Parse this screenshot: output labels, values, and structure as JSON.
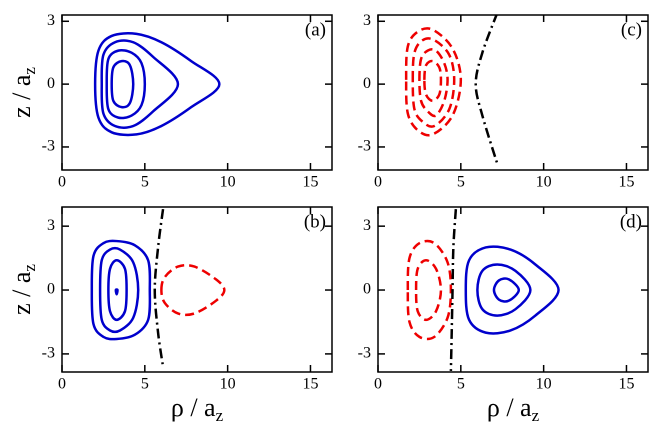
{
  "chart_data": [
    {
      "type": "contour",
      "panel_label": "(a)",
      "ylabel": {
        "text": "z / a",
        "sub": "z"
      },
      "xlim": [
        0,
        16.3
      ],
      "ylim": [
        -4.1,
        3.3
      ],
      "xticks": [
        0,
        5,
        10,
        15
      ],
      "yticks": [
        -3,
        0,
        3
      ],
      "series": [
        {
          "color": "#0000cc",
          "style": "solid",
          "closed": true,
          "x": [
            2.0,
            2.2,
            3.0,
            4.5,
            6.0,
            7.8,
            9.5,
            7.8,
            6.0,
            4.5,
            3.0,
            2.2
          ],
          "y": [
            0,
            1.6,
            2.3,
            2.4,
            2.0,
            1.1,
            0,
            -1.1,
            -2.0,
            -2.4,
            -2.3,
            -1.6
          ]
        },
        {
          "color": "#0000cc",
          "style": "solid",
          "closed": true,
          "x": [
            2.4,
            2.5,
            3.2,
            4.3,
            5.5,
            7.0,
            5.5,
            4.3,
            3.2,
            2.5
          ],
          "y": [
            0,
            1.4,
            2.0,
            2.0,
            1.3,
            0,
            -1.3,
            -2.0,
            -2.0,
            -1.4
          ]
        },
        {
          "color": "#0000cc",
          "style": "solid",
          "closed": true,
          "x": [
            2.7,
            2.8,
            3.4,
            4.2,
            4.8,
            5.0,
            4.8,
            4.2,
            3.4,
            2.8
          ],
          "y": [
            0,
            1.2,
            1.6,
            1.5,
            1.0,
            0,
            -1.0,
            -1.5,
            -1.6,
            -1.2
          ]
        },
        {
          "color": "#0000cc",
          "style": "solid",
          "closed": true,
          "x": [
            3.0,
            3.1,
            3.6,
            4.1,
            4.3,
            4.1,
            3.6,
            3.1
          ],
          "y": [
            0,
            0.8,
            1.1,
            0.9,
            0,
            -0.9,
            -1.1,
            -0.8
          ]
        }
      ]
    },
    {
      "type": "contour",
      "panel_label": "(b)",
      "ylabel": {
        "text": "z / a",
        "sub": "z"
      },
      "xlabel": {
        "text": "ρ / a",
        "sub": "z"
      },
      "xlim": [
        0,
        16.3
      ],
      "ylim": [
        -3.85,
        3.9
      ],
      "xticks": [
        0,
        5,
        10,
        15
      ],
      "yticks": [
        -3,
        0,
        3
      ],
      "series": [
        {
          "color": "#0000cc",
          "style": "solid",
          "closed": true,
          "x": [
            1.8,
            1.9,
            2.5,
            3.3,
            4.4,
            5.2,
            5.3,
            5.2,
            4.4,
            3.3,
            2.5,
            1.9
          ],
          "y": [
            0,
            1.6,
            2.2,
            2.3,
            2.1,
            1.4,
            0,
            -1.4,
            -2.1,
            -2.3,
            -2.2,
            -1.6
          ]
        },
        {
          "color": "#0000cc",
          "style": "solid",
          "closed": true,
          "x": [
            2.3,
            2.4,
            2.9,
            3.5,
            4.3,
            4.6,
            4.3,
            3.5,
            2.9,
            2.4
          ],
          "y": [
            0,
            1.4,
            1.9,
            1.9,
            1.3,
            0,
            -1.3,
            -1.9,
            -1.9,
            -1.4
          ]
        },
        {
          "color": "#0000cc",
          "style": "solid",
          "closed": true,
          "x": [
            2.8,
            2.9,
            3.3,
            3.8,
            3.9,
            3.8,
            3.3,
            2.9
          ],
          "y": [
            0,
            1.0,
            1.4,
            1.0,
            0,
            -1.0,
            -1.4,
            -1.0
          ]
        },
        {
          "color": "#0000cc",
          "style": "solid",
          "closed": true,
          "x": [
            3.25,
            3.35,
            3.3
          ],
          "y": [
            0,
            0,
            -0.2
          ]
        },
        {
          "color": "#ee0000",
          "style": "dashed",
          "closed": true,
          "x": [
            6.0,
            6.2,
            7.0,
            8.0,
            9.3,
            9.8,
            9.3,
            8.0,
            7.0,
            6.2
          ],
          "y": [
            0,
            0.6,
            1.1,
            1.1,
            0.5,
            0,
            -0.5,
            -1.1,
            -1.1,
            -0.6
          ]
        },
        {
          "color": "#000000",
          "style": "dashdot",
          "closed": false,
          "x": [
            6.1,
            5.8,
            5.6,
            5.8,
            6.1
          ],
          "y": [
            3.8,
            2.0,
            0,
            -2.0,
            -3.6
          ]
        }
      ]
    },
    {
      "type": "contour",
      "panel_label": "(c)",
      "xlim": [
        0,
        16.3
      ],
      "ylim": [
        -4.1,
        3.3
      ],
      "xticks": [
        0,
        5,
        10,
        15
      ],
      "yticks": [
        -3,
        0,
        3
      ],
      "series": [
        {
          "color": "#ee0000",
          "style": "dashed",
          "closed": true,
          "x": [
            1.7,
            1.8,
            2.4,
            3.3,
            4.5,
            5.0,
            4.5,
            3.3,
            2.4,
            1.8
          ],
          "y": [
            0.2,
            1.8,
            2.5,
            2.6,
            1.7,
            0.2,
            -1.5,
            -2.4,
            -2.2,
            -1.4
          ]
        },
        {
          "color": "#ee0000",
          "style": "dashed",
          "closed": true,
          "x": [
            2.1,
            2.2,
            2.7,
            3.4,
            4.3,
            4.6,
            4.3,
            3.4,
            2.7,
            2.2
          ],
          "y": [
            0.2,
            1.5,
            2.1,
            2.1,
            1.4,
            0.2,
            -1.2,
            -2.0,
            -1.8,
            -1.2
          ]
        },
        {
          "color": "#ee0000",
          "style": "dashed",
          "closed": true,
          "x": [
            2.5,
            2.6,
            3.0,
            3.5,
            4.0,
            4.2,
            4.0,
            3.5,
            3.0,
            2.6
          ],
          "y": [
            0.2,
            1.2,
            1.6,
            1.6,
            1.0,
            0.2,
            -0.8,
            -1.5,
            -1.3,
            -0.8
          ]
        },
        {
          "color": "#ee0000",
          "style": "dashed",
          "closed": true,
          "x": [
            2.8,
            2.9,
            3.3,
            3.7,
            3.8,
            3.7,
            3.3,
            2.9
          ],
          "y": [
            0.2,
            0.9,
            1.1,
            0.8,
            0.2,
            -0.5,
            -0.8,
            -0.5
          ]
        },
        {
          "color": "#000000",
          "style": "dashdot",
          "closed": false,
          "x": [
            7.2,
            6.3,
            5.9,
            6.3,
            7.2
          ],
          "y": [
            3.4,
            1.5,
            0,
            -1.5,
            -3.8
          ]
        }
      ]
    },
    {
      "type": "contour",
      "panel_label": "(d)",
      "xlabel": {
        "text": "ρ / a",
        "sub": "z"
      },
      "xlim": [
        0,
        16.3
      ],
      "ylim": [
        -3.85,
        3.9
      ],
      "xticks": [
        0,
        5,
        10,
        15
      ],
      "yticks": [
        -3,
        0,
        3
      ],
      "series": [
        {
          "color": "#ee0000",
          "style": "dashed",
          "closed": true,
          "x": [
            1.8,
            1.9,
            2.5,
            3.4,
            4.2,
            4.4,
            4.2,
            3.4,
            2.5,
            1.9
          ],
          "y": [
            0,
            1.5,
            2.2,
            2.2,
            1.3,
            0,
            -1.3,
            -2.2,
            -2.2,
            -1.5
          ]
        },
        {
          "color": "#ee0000",
          "style": "dashed",
          "closed": true,
          "x": [
            2.3,
            2.4,
            2.9,
            3.5,
            3.8,
            3.5,
            2.9,
            2.4
          ],
          "y": [
            0,
            1.0,
            1.4,
            1.0,
            0,
            -1.0,
            -1.4,
            -1.0
          ]
        },
        {
          "color": "#000000",
          "style": "dashdot",
          "closed": false,
          "x": [
            4.7,
            4.55,
            4.5,
            4.45,
            4.4
          ],
          "y": [
            3.8,
            2.0,
            0,
            -2.0,
            -3.8
          ]
        },
        {
          "color": "#0000cc",
          "style": "solid",
          "closed": true,
          "x": [
            5.3,
            5.5,
            6.5,
            8.0,
            9.5,
            10.9,
            9.5,
            8.0,
            6.5,
            5.5
          ],
          "y": [
            0,
            1.4,
            2.0,
            1.9,
            1.2,
            0,
            -1.2,
            -1.9,
            -2.0,
            -1.4
          ]
        },
        {
          "color": "#0000cc",
          "style": "solid",
          "closed": true,
          "x": [
            6.0,
            6.3,
            7.2,
            8.3,
            9.2,
            8.3,
            7.2,
            6.3
          ],
          "y": [
            0,
            0.9,
            1.2,
            0.9,
            0,
            -0.9,
            -1.2,
            -0.9
          ]
        },
        {
          "color": "#0000cc",
          "style": "solid",
          "closed": true,
          "x": [
            7.0,
            7.3,
            7.9,
            8.5,
            7.9,
            7.3
          ],
          "y": [
            0,
            0.45,
            0.5,
            0,
            -0.5,
            -0.45
          ]
        }
      ]
    }
  ]
}
